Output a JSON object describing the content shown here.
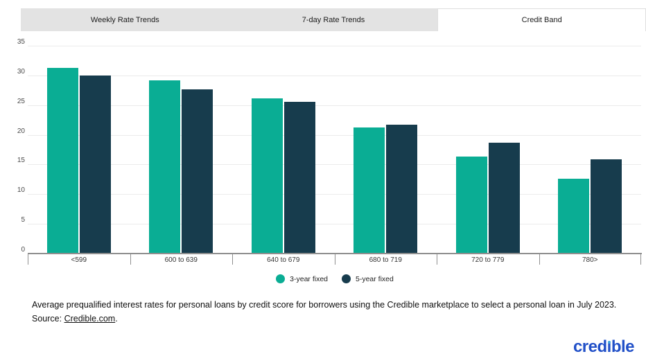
{
  "tabs": [
    {
      "label": "Weekly Rate Trends",
      "active": false
    },
    {
      "label": "7-day Rate Trends",
      "active": false
    },
    {
      "label": "Credit Band",
      "active": true
    }
  ],
  "chart_data": {
    "type": "bar",
    "title": "",
    "categories": [
      "<599",
      "600 to 639",
      "640 to 679",
      "680 to 719",
      "720 to 779",
      "780>"
    ],
    "series": [
      {
        "name": "3-year fixed",
        "color": "#0aad94",
        "values": [
          31.3,
          29.2,
          26.1,
          21.2,
          16.3,
          12.6
        ]
      },
      {
        "name": "5-year fixed",
        "color": "#173c4d",
        "values": [
          30.0,
          27.7,
          25.6,
          21.7,
          18.7,
          15.9
        ]
      }
    ],
    "ylim": [
      0,
      35
    ],
    "yticks": [
      0,
      5,
      10,
      15,
      20,
      25,
      30,
      35
    ],
    "xlabel": "",
    "ylabel": "",
    "grid": true,
    "legend_position": "bottom"
  },
  "caption": {
    "line1": "Average prequalified interest rates for personal loans by credit score for borrowers using the Credible marketplace to select a personal loan in July 2023.",
    "source_prefix": "Source: ",
    "source_link": "Credible.com",
    "source_suffix": "."
  },
  "logo": {
    "text": "credible",
    "color": "#2150c8",
    "dot_color": "#3fa9dc"
  }
}
